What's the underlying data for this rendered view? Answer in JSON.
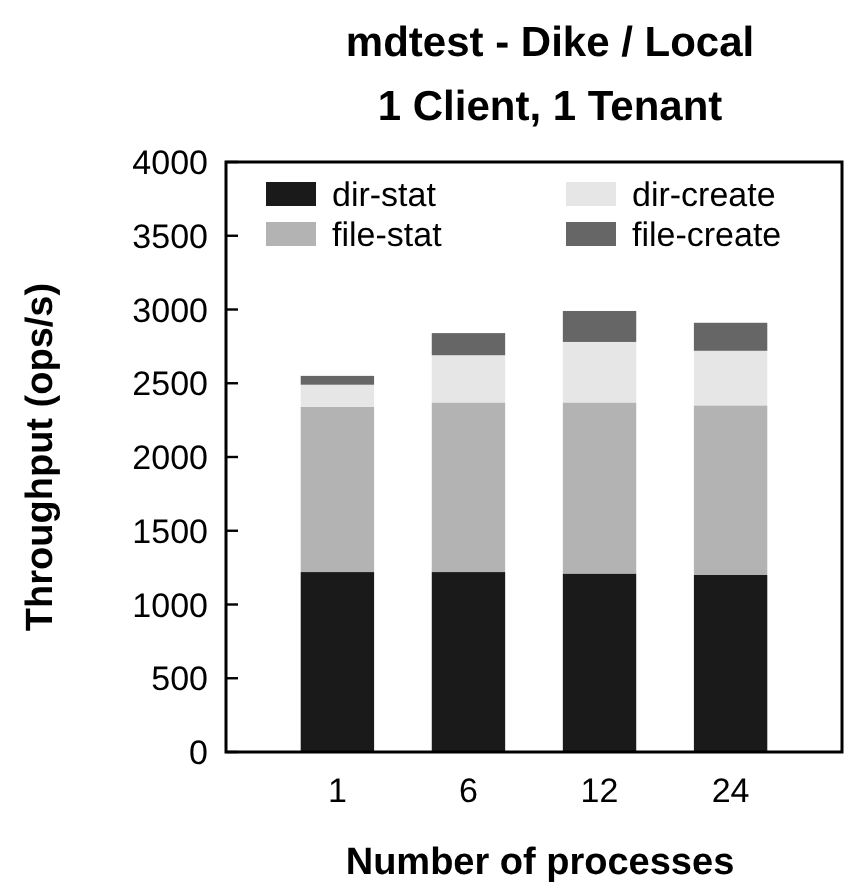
{
  "chart_data": {
    "type": "bar",
    "title": "mdtest - Dike / Local",
    "subtitle": "1 Client, 1 Tenant",
    "xlabel": "Number of processes",
    "ylabel": "Throughput (ops/s)",
    "categories": [
      "1",
      "6",
      "12",
      "24"
    ],
    "stacked": true,
    "ylim": [
      0,
      4000
    ],
    "yticks": [
      0,
      500,
      1000,
      1500,
      2000,
      2500,
      3000,
      3500,
      4000
    ],
    "legend": "top",
    "series": [
      {
        "name": "dir-stat",
        "color": "#1a1a1a",
        "values": [
          1220,
          1220,
          1210,
          1200
        ]
      },
      {
        "name": "file-stat",
        "color": "#b3b3b3",
        "values": [
          1120,
          1150,
          1160,
          1150
        ]
      },
      {
        "name": "dir-create",
        "color": "#e6e6e6",
        "values": [
          150,
          320,
          410,
          370
        ]
      },
      {
        "name": "file-create",
        "color": "#666666",
        "values": [
          60,
          150,
          210,
          190
        ]
      }
    ]
  }
}
